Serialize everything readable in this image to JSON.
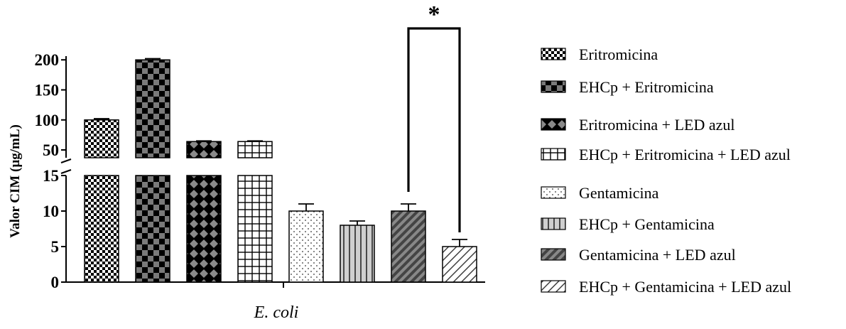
{
  "chart_data": {
    "type": "bar",
    "xlabel": "E. coli",
    "ylabel": "Valor CIM (µg/mL)",
    "y_axis_break": true,
    "lower_segment": {
      "ylim": [
        0,
        15
      ],
      "ticks": [
        0,
        5,
        10,
        15
      ]
    },
    "upper_segment": {
      "ylim": [
        37,
        205
      ],
      "ticks": [
        50,
        100,
        150,
        200
      ]
    },
    "series": [
      {
        "name": "Eritromicina",
        "value": 100,
        "error": 2,
        "pattern": "checker-fine"
      },
      {
        "name": "EHCp + Eritromicina",
        "value": 200,
        "error": 2,
        "pattern": "checker-coarse"
      },
      {
        "name": "Eritromicina + LED azul",
        "value": 64,
        "error": 1,
        "pattern": "diamond"
      },
      {
        "name": "EHCp + Eritromicina + LED azul",
        "value": 64,
        "error": 1,
        "pattern": "grid"
      },
      {
        "name": "Gentamicina",
        "value": 10,
        "error": 1,
        "pattern": "dots"
      },
      {
        "name": "EHCp + Gentamicina",
        "value": 8,
        "error": 0.6,
        "pattern": "vlines"
      },
      {
        "name": "Gentamicina + LED azul",
        "value": 10,
        "error": 1,
        "pattern": "diag-dense"
      },
      {
        "name": "EHCp + Gentamicina + LED azul",
        "value": 5,
        "error": 1,
        "pattern": "diag-sparse"
      }
    ],
    "significance": [
      {
        "between": [
          6,
          7
        ],
        "label": "*"
      }
    ],
    "legend_position": "right",
    "grid": false
  }
}
